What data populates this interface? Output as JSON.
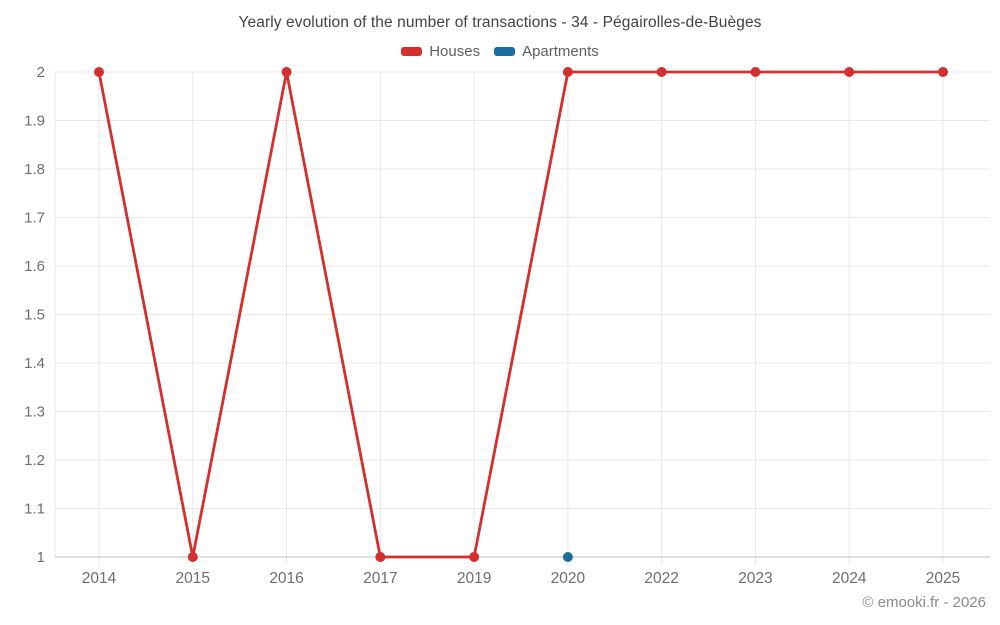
{
  "title": "Yearly evolution of the number of transactions - 34 - Pégairolles-de-Buèges",
  "legend": [
    {
      "label": "Houses",
      "color": "#d32f2f"
    },
    {
      "label": "Apartments",
      "color": "#1a6d9e"
    }
  ],
  "footer": "© emooki.fr - 2026",
  "colors": {
    "houses": "#d32f2f",
    "apartments": "#1a6d9e",
    "grid": "#e8e8e8",
    "axis_line": "#bdbdbd",
    "tick_label": "#6e6e6e",
    "title_text": "#424242",
    "footer_text": "#8c8c8c"
  },
  "chart_data": {
    "type": "line",
    "categories": [
      "2014",
      "2015",
      "2016",
      "2017",
      "2019",
      "2020",
      "2022",
      "2023",
      "2024",
      "2025"
    ],
    "series": [
      {
        "name": "Houses",
        "color": "#d32f2f",
        "values": [
          2,
          1,
          2,
          1,
          1,
          2,
          2,
          2,
          2,
          2
        ]
      },
      {
        "name": "Apartments",
        "color": "#1a6d9e",
        "values": [
          null,
          null,
          null,
          null,
          null,
          1,
          null,
          null,
          null,
          null
        ]
      }
    ],
    "title": "Yearly evolution of the number of transactions - 34 - Pégairolles-de-Buèges",
    "xlabel": "",
    "ylabel": "",
    "ylim": [
      1,
      2
    ],
    "yticks": [
      1,
      1.1,
      1.2,
      1.3,
      1.4,
      1.5,
      1.6,
      1.7,
      1.8,
      1.9,
      2
    ],
    "grid": true,
    "legend_position": "top"
  }
}
